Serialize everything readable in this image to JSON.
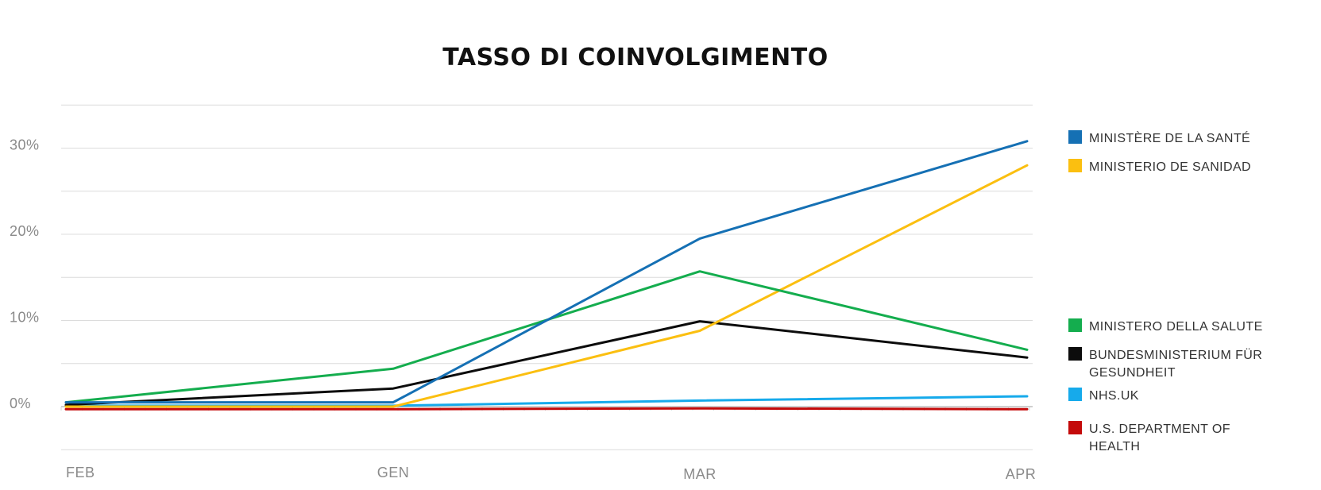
{
  "chart_data": {
    "type": "line",
    "title": "TASSO DI COINVOLGIMENTO",
    "categories": [
      "FEB",
      "GEN",
      "MAR",
      "APR"
    ],
    "ylim": [
      -5,
      35
    ],
    "yticks": [
      0,
      10,
      20,
      30
    ],
    "ytick_labels": [
      "0%",
      "10%",
      "20%",
      "30%"
    ],
    "grid": true,
    "legend_position": "right",
    "series": [
      {
        "name": "MINISTÈRE DE LA SANTÉ",
        "color": "#1570b4",
        "values": [
          0.5,
          0.5,
          19.5,
          30.8
        ]
      },
      {
        "name": "MINISTERIO DE SANIDAD",
        "color": "#fbbf10",
        "values": [
          0.0,
          0.0,
          8.8,
          28.0
        ]
      },
      {
        "name": "MINISTERO DELLA SALUTE",
        "color": "#14ad4e",
        "values": [
          0.5,
          4.4,
          15.7,
          6.6
        ]
      },
      {
        "name": "BUNDESMINISTERIUM FÜR GESUNDHEIT",
        "color": "#0c0c0c",
        "values": [
          0.2,
          2.1,
          9.9,
          5.7
        ]
      },
      {
        "name": "NHS.UK",
        "color": "#16aaeb",
        "values": [
          0.1,
          0.1,
          0.7,
          1.2
        ]
      },
      {
        "name": "U.S. DEPARTMENT OF HEALTH",
        "color": "#c40a0a",
        "values": [
          -0.3,
          -0.3,
          -0.2,
          -0.3
        ]
      }
    ]
  }
}
